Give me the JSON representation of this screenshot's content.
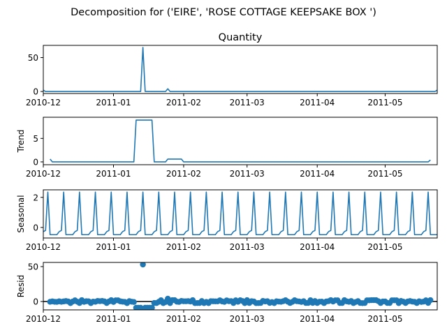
{
  "figure": {
    "suptitle": "Decomposition for ('EIRE', 'ROSE COTTAGE KEEPSAKE BOX ')"
  },
  "colors": {
    "series": "#1f77b4",
    "zero_line": "#000000",
    "axes": "#000000"
  },
  "chart_data": [
    {
      "type": "line",
      "title": "Quantity",
      "ylabel": "",
      "xlim": [
        "2010-12-01",
        "2011-05-24"
      ],
      "ylim": [
        -3,
        68
      ],
      "yticks": [
        0,
        50
      ],
      "xticks": [
        "2010-12",
        "2011-01",
        "2011-02",
        "2011-03",
        "2011-04",
        "2011-05"
      ],
      "grid": false,
      "series": [
        {
          "x": [
            "2010-12-01",
            "2010-12-02",
            "2011-01-13",
            "2011-01-14",
            "2011-01-15",
            "2011-01-24",
            "2011-01-25",
            "2011-01-26",
            "2011-05-23",
            "2011-05-24"
          ],
          "values": [
            2,
            0,
            0,
            65,
            0,
            0,
            4,
            0,
            0,
            2
          ]
        }
      ]
    },
    {
      "type": "line",
      "title": "",
      "ylabel": "Trend",
      "xlim": [
        "2010-12-01",
        "2011-05-24"
      ],
      "ylim": [
        -0.6,
        9.5
      ],
      "yticks": [
        0,
        5
      ],
      "xticks": [
        "2010-12",
        "2011-01",
        "2011-02",
        "2011-03",
        "2011-04",
        "2011-05"
      ],
      "grid": false,
      "series": [
        {
          "x": [
            "2010-12-04",
            "2010-12-05",
            "2011-01-10",
            "2011-01-11",
            "2011-01-18",
            "2011-01-19",
            "2011-01-24",
            "2011-01-25",
            "2011-01-31",
            "2011-02-01",
            "2011-05-20",
            "2011-05-21"
          ],
          "values": [
            0.6,
            0,
            0,
            8.9,
            8.9,
            0,
            0,
            0.6,
            0.6,
            0,
            0,
            0.4
          ]
        }
      ]
    },
    {
      "type": "line",
      "title": "",
      "ylabel": "Seasonal",
      "xlim": [
        "2010-12-01",
        "2011-05-24"
      ],
      "ylim": [
        -0.7,
        2.5
      ],
      "yticks": [
        0,
        2
      ],
      "xticks": [
        "2010-12",
        "2011-01",
        "2011-02",
        "2011-03",
        "2011-04",
        "2011-05"
      ],
      "grid": false,
      "seasonal_pattern": {
        "start": "2010-12-01",
        "period_days": 7,
        "week_values": [
          -0.28,
          -0.2,
          2.35,
          -0.48,
          -0.48,
          -0.48,
          -0.48
        ]
      }
    },
    {
      "type": "scatter",
      "title": "",
      "ylabel": "Resid",
      "xlim": [
        "2010-12-01",
        "2011-05-24"
      ],
      "ylim": [
        -12,
        56
      ],
      "yticks": [
        0,
        50
      ],
      "xticks": [
        "2010-12",
        "2011-01",
        "2011-02",
        "2011-03",
        "2011-04",
        "2011-05"
      ],
      "grid": false,
      "zero_line": true,
      "outliers": [
        {
          "x": "2011-01-11",
          "value": -9
        },
        {
          "x": "2011-01-12",
          "value": -9
        },
        {
          "x": "2011-01-13",
          "value": -9
        },
        {
          "x": "2011-01-14",
          "value": 53
        },
        {
          "x": "2011-01-15",
          "value": -9
        },
        {
          "x": "2011-01-16",
          "value": -9
        },
        {
          "x": "2011-01-17",
          "value": -9
        },
        {
          "x": "2011-01-18",
          "value": -9
        },
        {
          "x": "2011-01-25",
          "value": 4
        }
      ],
      "baseline_noise": {
        "start": "2010-12-04",
        "end": "2011-05-21",
        "typical_range": [
          -3,
          2
        ]
      }
    }
  ]
}
